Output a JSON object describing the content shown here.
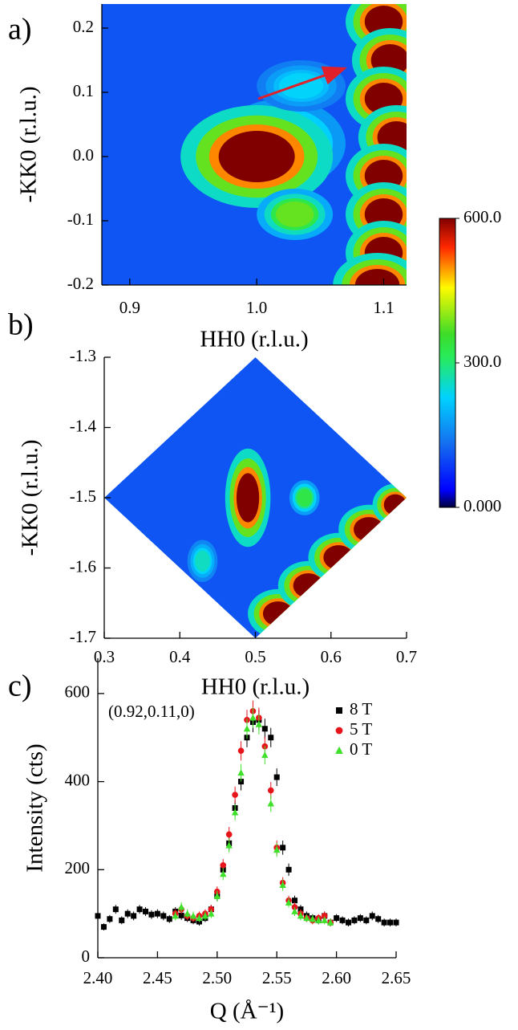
{
  "chart_data": [
    {
      "type": "heatmap",
      "panel_label": "a)",
      "x_label": "HH0 (r.l.u.)",
      "y_label": "-KK0 (r.l.u.)",
      "region": "rect",
      "xlim": [
        0.878,
        1.118
      ],
      "ylim": [
        -0.2,
        0.2375
      ],
      "xticks": [
        0.9,
        {
          "value": 1,
          "label": "1.0"
        },
        1.1
      ],
      "yticks": [
        -0.2,
        -0.1,
        {
          "value": 0,
          "label": "0.0"
        },
        0.1,
        0.2
      ],
      "background": 110,
      "spots": [
        {
          "x": 1.02,
          "y": 0.02,
          "width": 0.05,
          "height": 0.07,
          "intensity": 320
        },
        {
          "x": 1.0,
          "y": 0.0,
          "width": 0.06,
          "height": 0.08,
          "intensity": 600
        },
        {
          "x": 1.03,
          "y": -0.09,
          "width": 0.03,
          "height": 0.04,
          "intensity": 380
        },
        {
          "x": 1.035,
          "y": 0.11,
          "width": 0.035,
          "height": 0.04,
          "intensity": 230
        },
        {
          "x": 1.1,
          "y": 0.21,
          "width": 0.03,
          "height": 0.05,
          "intensity": 600
        },
        {
          "x": 1.105,
          "y": 0.15,
          "width": 0.03,
          "height": 0.05,
          "intensity": 600
        },
        {
          "x": 1.1,
          "y": 0.09,
          "width": 0.03,
          "height": 0.05,
          "intensity": 600
        },
        {
          "x": 1.11,
          "y": 0.03,
          "width": 0.03,
          "height": 0.05,
          "intensity": 600
        },
        {
          "x": 1.1,
          "y": -0.03,
          "width": 0.03,
          "height": 0.05,
          "intensity": 600
        },
        {
          "x": 1.1,
          "y": -0.09,
          "width": 0.03,
          "height": 0.05,
          "intensity": 600
        },
        {
          "x": 1.1,
          "y": -0.15,
          "width": 0.03,
          "height": 0.05,
          "intensity": 600
        },
        {
          "x": 1.095,
          "y": -0.2,
          "width": 0.035,
          "height": 0.05,
          "intensity": 600
        }
      ],
      "colorbar": {
        "lim": [
          0,
          600
        ],
        "ticks": [
          {
            "value": 0,
            "label": "0.000"
          },
          {
            "value": 300,
            "label": "300.0"
          },
          {
            "value": 600,
            "label": "600.0"
          }
        ]
      }
    },
    {
      "type": "heatmap",
      "panel_label": "b)",
      "x_label": "HH0 (r.l.u.)",
      "y_label": "-KK0 (r.l.u.)",
      "region": "diamond",
      "xlim": [
        0.3,
        0.7
      ],
      "ylim": [
        -1.7,
        -1.3
      ],
      "xticks": [
        0.3,
        0.4,
        0.5,
        0.6,
        0.7
      ],
      "yticks": [
        -1.7,
        -1.6,
        -1.5,
        -1.4,
        -1.3
      ],
      "background": 110,
      "spots": [
        {
          "x": 0.49,
          "y": -1.5,
          "width": 0.03,
          "height": 0.07,
          "intensity": 600
        },
        {
          "x": 0.565,
          "y": -1.5,
          "width": 0.02,
          "height": 0.025,
          "intensity": 330
        },
        {
          "x": 0.43,
          "y": -1.59,
          "width": 0.02,
          "height": 0.03,
          "intensity": 260
        },
        {
          "x": 0.53,
          "y": -1.665,
          "width": 0.04,
          "height": 0.035,
          "intensity": 600
        },
        {
          "x": 0.57,
          "y": -1.625,
          "width": 0.04,
          "height": 0.035,
          "intensity": 600
        },
        {
          "x": 0.61,
          "y": -1.585,
          "width": 0.04,
          "height": 0.035,
          "intensity": 600
        },
        {
          "x": 0.65,
          "y": -1.545,
          "width": 0.04,
          "height": 0.035,
          "intensity": 600
        },
        {
          "x": 0.685,
          "y": -1.51,
          "width": 0.03,
          "height": 0.03,
          "intensity": 600
        }
      ]
    },
    {
      "type": "scatter",
      "panel_label": "c)",
      "x_label": "Q (Å⁻¹)",
      "y_label": "Intensity (cts)",
      "annotation": "(0.92,0.11,0)",
      "xlim": [
        2.4,
        2.65
      ],
      "ylim": [
        0,
        680
      ],
      "xticks": [
        {
          "value": 2.4,
          "label": "2.40"
        },
        2.45,
        {
          "value": 2.5,
          "label": "2.50"
        },
        2.55,
        {
          "value": 2.6,
          "label": "2.60"
        },
        2.65
      ],
      "yticks": [
        0,
        200,
        400,
        600
      ],
      "series": [
        {
          "name": "8 T",
          "color": "#000000",
          "marker": "square",
          "x": [
            2.4,
            2.405,
            2.41,
            2.415,
            2.42,
            2.425,
            2.43,
            2.435,
            2.44,
            2.445,
            2.45,
            2.455,
            2.46,
            2.465,
            2.47,
            2.475,
            2.48,
            2.485,
            2.49,
            2.495,
            2.5,
            2.505,
            2.51,
            2.515,
            2.52,
            2.525,
            2.53,
            2.535,
            2.54,
            2.545,
            2.55,
            2.555,
            2.56,
            2.565,
            2.57,
            2.575,
            2.58,
            2.585,
            2.59,
            2.595,
            2.6,
            2.605,
            2.61,
            2.615,
            2.62,
            2.625,
            2.63,
            2.635,
            2.64,
            2.645,
            2.65
          ],
          "values": [
            95,
            70,
            88,
            110,
            85,
            100,
            95,
            110,
            105,
            98,
            100,
            95,
            88,
            105,
            96,
            90,
            85,
            82,
            90,
            110,
            140,
            200,
            260,
            340,
            400,
            500,
            535,
            540,
            520,
            500,
            410,
            250,
            200,
            130,
            110,
            95,
            90,
            85,
            95,
            80,
            90,
            85,
            80,
            85,
            90,
            85,
            95,
            88,
            80,
            80,
            80
          ],
          "errors": [
            10,
            8,
            9,
            10,
            9,
            10,
            10,
            10,
            10,
            10,
            10,
            10,
            9,
            10,
            10,
            9,
            9,
            9,
            9,
            10,
            12,
            14,
            16,
            18,
            20,
            22,
            23,
            23,
            23,
            22,
            20,
            16,
            14,
            11,
            10,
            10,
            9,
            9,
            10,
            9,
            9,
            9,
            9,
            9,
            9,
            9,
            10,
            9,
            9,
            9,
            9
          ]
        },
        {
          "name": "5 T",
          "color": "#e8141c",
          "marker": "circle",
          "x": [
            2.465,
            2.47,
            2.475,
            2.48,
            2.485,
            2.49,
            2.495,
            2.5,
            2.505,
            2.51,
            2.515,
            2.52,
            2.525,
            2.53,
            2.535,
            2.54,
            2.545,
            2.55,
            2.555,
            2.56,
            2.565,
            2.57,
            2.575,
            2.58,
            2.585,
            2.59,
            2.595
          ],
          "values": [
            100,
            110,
            95,
            90,
            95,
            100,
            110,
            150,
            210,
            280,
            370,
            470,
            540,
            560,
            545,
            480,
            380,
            250,
            170,
            130,
            115,
            100,
            90,
            85,
            90,
            95,
            80
          ],
          "errors": [
            10,
            10,
            10,
            9,
            10,
            10,
            10,
            12,
            14,
            17,
            19,
            22,
            23,
            24,
            23,
            22,
            19,
            16,
            13,
            11,
            11,
            10,
            9,
            9,
            9,
            10,
            9
          ]
        },
        {
          "name": "0 T",
          "color": "#3ee02a",
          "marker": "triangle",
          "x": [
            2.465,
            2.47,
            2.475,
            2.48,
            2.485,
            2.49,
            2.495,
            2.5,
            2.505,
            2.51,
            2.515,
            2.52,
            2.525,
            2.53,
            2.535,
            2.54,
            2.545,
            2.55,
            2.555,
            2.56,
            2.565,
            2.57,
            2.575,
            2.58,
            2.585,
            2.59,
            2.595
          ],
          "values": [
            95,
            115,
            100,
            95,
            90,
            95,
            100,
            140,
            190,
            255,
            330,
            420,
            520,
            545,
            530,
            460,
            350,
            245,
            165,
            125,
            105,
            95,
            90,
            88,
            85,
            85,
            80
          ],
          "errors": [
            10,
            11,
            10,
            10,
            9,
            10,
            10,
            12,
            14,
            16,
            18,
            20,
            23,
            23,
            23,
            21,
            19,
            16,
            13,
            11,
            10,
            10,
            9,
            9,
            9,
            9,
            9
          ]
        }
      ]
    }
  ]
}
